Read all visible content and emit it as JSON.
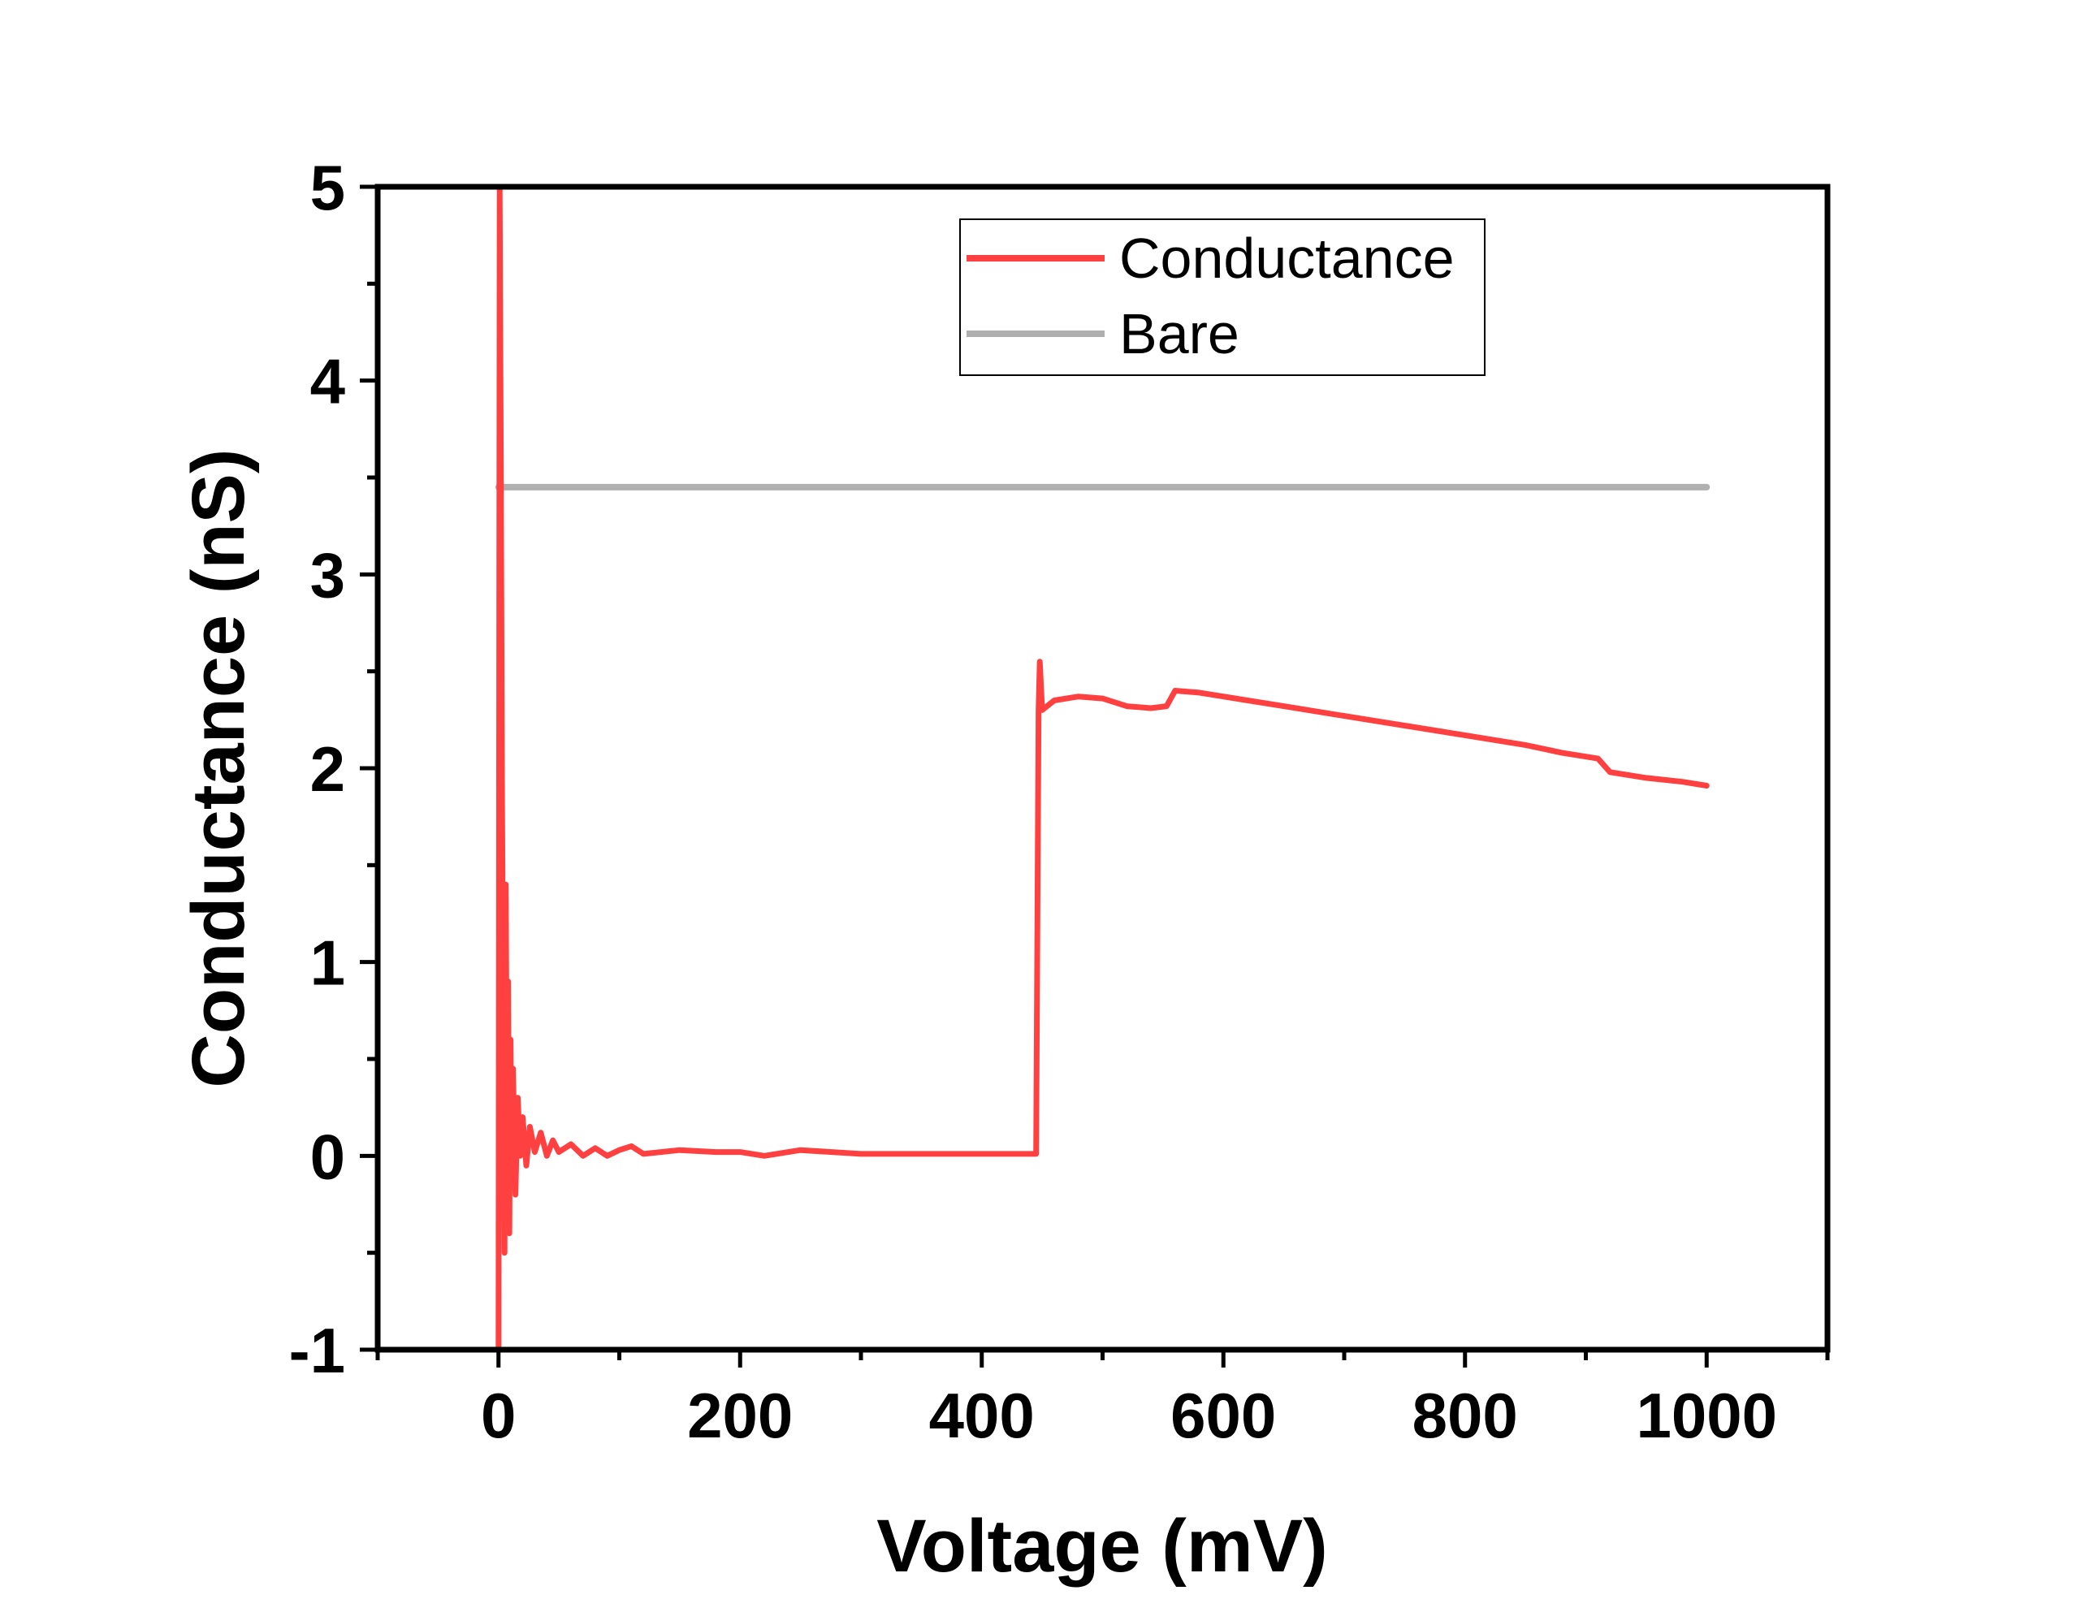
{
  "chart_data": {
    "type": "line",
    "xlabel": "Voltage (mV)",
    "ylabel": "Conductance (nS)",
    "xlim": [
      -100,
      1100
    ],
    "ylim": [
      -1,
      5
    ],
    "x_ticks": [
      0,
      200,
      400,
      600,
      800,
      1000
    ],
    "x_tick_labels": [
      "0",
      "200",
      "400",
      "600",
      "800",
      "1000"
    ],
    "y_ticks": [
      -1,
      0,
      1,
      2,
      3,
      4,
      5
    ],
    "y_tick_labels": [
      "-1",
      "0",
      "1",
      "2",
      "3",
      "4",
      "5"
    ],
    "legend_position": "top-center",
    "grid": false,
    "series": [
      {
        "name": "Conductance",
        "color": "#ff4040",
        "points": [
          [
            0,
            -1.0
          ],
          [
            1,
            5.0
          ],
          [
            2,
            3.5
          ],
          [
            3,
            1.8
          ],
          [
            4,
            0.6
          ],
          [
            5,
            -0.5
          ],
          [
            6,
            1.4
          ],
          [
            7,
            0.2
          ],
          [
            8,
            0.9
          ],
          [
            9,
            -0.4
          ],
          [
            10,
            0.6
          ],
          [
            11,
            -0.1
          ],
          [
            12,
            0.45
          ],
          [
            14,
            -0.2
          ],
          [
            16,
            0.3
          ],
          [
            18,
            0.0
          ],
          [
            20,
            0.2
          ],
          [
            23,
            -0.05
          ],
          [
            26,
            0.15
          ],
          [
            30,
            0.02
          ],
          [
            35,
            0.12
          ],
          [
            40,
            0.0
          ],
          [
            45,
            0.08
          ],
          [
            50,
            0.02
          ],
          [
            60,
            0.06
          ],
          [
            70,
            0.0
          ],
          [
            80,
            0.04
          ],
          [
            90,
            0.0
          ],
          [
            100,
            0.03
          ],
          [
            110,
            0.05
          ],
          [
            120,
            0.01
          ],
          [
            150,
            0.03
          ],
          [
            180,
            0.02
          ],
          [
            200,
            0.02
          ],
          [
            220,
            0.0
          ],
          [
            250,
            0.03
          ],
          [
            300,
            0.01
          ],
          [
            350,
            0.01
          ],
          [
            400,
            0.01
          ],
          [
            445,
            0.01
          ],
          [
            447,
            2.3
          ],
          [
            448,
            2.55
          ],
          [
            450,
            2.3
          ],
          [
            460,
            2.35
          ],
          [
            480,
            2.37
          ],
          [
            500,
            2.36
          ],
          [
            520,
            2.32
          ],
          [
            540,
            2.31
          ],
          [
            553,
            2.32
          ],
          [
            560,
            2.4
          ],
          [
            580,
            2.39
          ],
          [
            600,
            2.37
          ],
          [
            650,
            2.32
          ],
          [
            700,
            2.27
          ],
          [
            750,
            2.22
          ],
          [
            800,
            2.17
          ],
          [
            850,
            2.12
          ],
          [
            880,
            2.08
          ],
          [
            910,
            2.05
          ],
          [
            920,
            1.98
          ],
          [
            950,
            1.95
          ],
          [
            980,
            1.93
          ],
          [
            1000,
            1.91
          ]
        ]
      },
      {
        "name": "Bare",
        "color": "#b0b0b0",
        "points": [
          [
            0,
            3.45
          ],
          [
            1000,
            3.45
          ]
        ]
      }
    ]
  }
}
